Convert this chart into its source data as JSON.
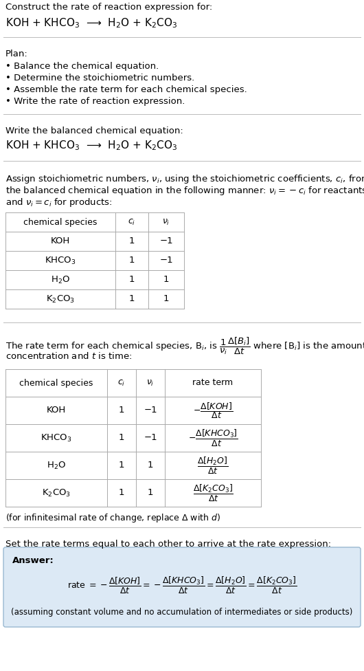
{
  "bg_color": "#ffffff",
  "text_color": "#000000",
  "title_line1": "Construct the rate of reaction expression for:",
  "equation_top": "KOH + KHCO$_3$  ⟶  H$_2$O + K$_2$CO$_3$",
  "plan_header": "Plan:",
  "plan_items": [
    "• Balance the chemical equation.",
    "• Determine the stoichiometric numbers.",
    "• Assemble the rate term for each chemical species.",
    "• Write the rate of reaction expression."
  ],
  "section2_header": "Write the balanced chemical equation:",
  "equation_balanced": "KOH + KHCO$_3$  ⟶  H$_2$O + K$_2$CO$_3$",
  "section3_text": [
    "Assign stoichiometric numbers, $\\nu_i$, using the stoichiometric coefficients, $c_i$, from",
    "the balanced chemical equation in the following manner: $\\nu_i = -c_i$ for reactants",
    "and $\\nu_i = c_i$ for products:"
  ],
  "table1_headers": [
    "chemical species",
    "$c_i$",
    "$\\nu_i$"
  ],
  "table1_rows": [
    [
      "KOH",
      "1",
      "−1"
    ],
    [
      "KHCO$_3$",
      "1",
      "−1"
    ],
    [
      "H$_2$O",
      "1",
      "1"
    ],
    [
      "K$_2$CO$_3$",
      "1",
      "1"
    ]
  ],
  "section4_text": [
    "The rate term for each chemical species, B$_i$, is $\\dfrac{1}{\\nu_i}\\dfrac{\\Delta[B_i]}{\\Delta t}$ where [B$_i$] is the amount",
    "concentration and $t$ is time:"
  ],
  "table2_headers": [
    "chemical species",
    "$c_i$",
    "$\\nu_i$",
    "rate term"
  ],
  "table2_rows": [
    [
      "KOH",
      "1",
      "−1",
      "$-\\dfrac{\\Delta[KOH]}{\\Delta t}$"
    ],
    [
      "KHCO$_3$",
      "1",
      "−1",
      "$-\\dfrac{\\Delta[KHCO_3]}{\\Delta t}$"
    ],
    [
      "H$_2$O",
      "1",
      "1",
      "$\\dfrac{\\Delta[H_2O]}{\\Delta t}$"
    ],
    [
      "K$_2$CO$_3$",
      "1",
      "1",
      "$\\dfrac{\\Delta[K_2CO_3]}{\\Delta t}$"
    ]
  ],
  "infinitesimal_note": "(for infinitesimal rate of change, replace Δ with $d$)",
  "section5_header": "Set the rate terms equal to each other to arrive at the rate expression:",
  "answer_box_bg": "#dce9f5",
  "answer_label": "Answer:",
  "answer_note": "(assuming constant volume and no accumulation of intermediates or side products)",
  "separator_color": "#bbbbbb",
  "table_line_color": "#aaaaaa",
  "fn": 9.5,
  "fe": 11.0
}
